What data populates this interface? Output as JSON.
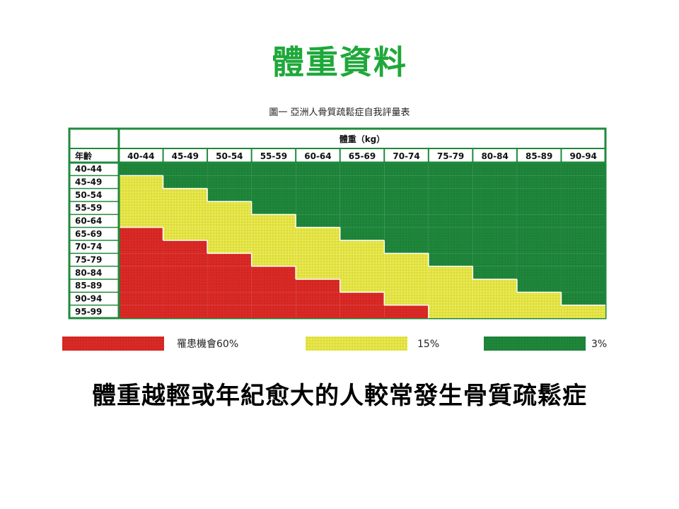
{
  "title": "體重資料",
  "caption": "圖一 亞洲人骨質疏鬆症自我評量表",
  "footer": "體重越輕或年紀愈大的人較常發生骨質疏鬆症",
  "chart_data": {
    "type": "heatmap",
    "column_header": "體重（kg）",
    "row_header": "年齡",
    "x_categories": [
      "40-44",
      "45-49",
      "50-54",
      "55-59",
      "60-64",
      "65-69",
      "70-74",
      "75-79",
      "80-84",
      "85-89",
      "90-94"
    ],
    "y_categories": [
      "40-44",
      "45-49",
      "50-54",
      "55-59",
      "60-64",
      "65-69",
      "70-74",
      "75-79",
      "80-84",
      "85-89",
      "90-94",
      "95-99"
    ],
    "levels": {
      "red": {
        "label": "罹患機會60%",
        "color": "#e02a26"
      },
      "yellow": {
        "label": "15%",
        "color": "#eded4a"
      },
      "green": {
        "label": "3%",
        "color": "#1f8a3c"
      }
    },
    "cells": [
      [
        "green",
        "green",
        "green",
        "green",
        "green",
        "green",
        "green",
        "green",
        "green",
        "green",
        "green"
      ],
      [
        "yellow",
        "green",
        "green",
        "green",
        "green",
        "green",
        "green",
        "green",
        "green",
        "green",
        "green"
      ],
      [
        "yellow",
        "yellow",
        "green",
        "green",
        "green",
        "green",
        "green",
        "green",
        "green",
        "green",
        "green"
      ],
      [
        "yellow",
        "yellow",
        "yellow",
        "green",
        "green",
        "green",
        "green",
        "green",
        "green",
        "green",
        "green"
      ],
      [
        "yellow",
        "yellow",
        "yellow",
        "yellow",
        "green",
        "green",
        "green",
        "green",
        "green",
        "green",
        "green"
      ],
      [
        "red",
        "yellow",
        "yellow",
        "yellow",
        "yellow",
        "green",
        "green",
        "green",
        "green",
        "green",
        "green"
      ],
      [
        "red",
        "red",
        "yellow",
        "yellow",
        "yellow",
        "yellow",
        "green",
        "green",
        "green",
        "green",
        "green"
      ],
      [
        "red",
        "red",
        "red",
        "yellow",
        "yellow",
        "yellow",
        "yellow",
        "green",
        "green",
        "green",
        "green"
      ],
      [
        "red",
        "red",
        "red",
        "red",
        "yellow",
        "yellow",
        "yellow",
        "yellow",
        "green",
        "green",
        "green"
      ],
      [
        "red",
        "red",
        "red",
        "red",
        "red",
        "yellow",
        "yellow",
        "yellow",
        "yellow",
        "green",
        "green"
      ],
      [
        "red",
        "red",
        "red",
        "red",
        "red",
        "red",
        "yellow",
        "yellow",
        "yellow",
        "yellow",
        "green"
      ],
      [
        "red",
        "red",
        "red",
        "red",
        "red",
        "red",
        "red",
        "yellow",
        "yellow",
        "yellow",
        "yellow"
      ]
    ]
  }
}
